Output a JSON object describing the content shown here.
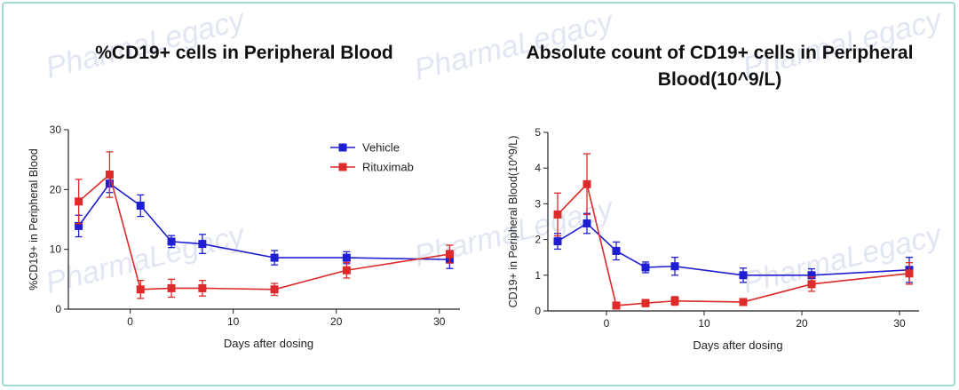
{
  "watermark": "PharmaLegacy",
  "colors": {
    "vehicle": "#1f1fd1",
    "rituximab": "#dd2a2a",
    "axis": "#222222",
    "border": "#9edcd2"
  },
  "chart_data": [
    {
      "type": "line",
      "title": "%CD19+ cells in Peripheral Blood",
      "xlabel": "Days after dosing",
      "ylabel": "%CD19+ in Peripheral Blood",
      "xlim": [
        -6,
        32
      ],
      "ylim": [
        0,
        30
      ],
      "xticks": [
        0,
        10,
        20,
        30
      ],
      "yticks": [
        0,
        10,
        20,
        30
      ],
      "legend": "top-center",
      "series": [
        {
          "name": "Vehicle",
          "color": "#1f1fd1",
          "x": [
            -5,
            -2,
            1,
            4,
            7,
            14,
            21,
            31
          ],
          "y": [
            13.9,
            21.0,
            17.3,
            11.3,
            10.9,
            8.6,
            8.6,
            8.3
          ],
          "err": [
            1.8,
            1.5,
            1.8,
            1.0,
            1.6,
            1.2,
            1.0,
            1.5
          ]
        },
        {
          "name": "Rituximab",
          "color": "#dd2a2a",
          "x": [
            -5,
            -2,
            1,
            4,
            7,
            14,
            21,
            31
          ],
          "y": [
            18.0,
            22.5,
            3.3,
            3.5,
            3.5,
            3.3,
            6.5,
            9.2
          ],
          "err": [
            3.7,
            3.8,
            1.5,
            1.5,
            1.3,
            1.0,
            1.3,
            1.5
          ]
        }
      ]
    },
    {
      "type": "line",
      "title": "Absolute count of CD19+ cells in Peripheral Blood(10^9/L)",
      "xlabel": "Days after dosing",
      "ylabel": "CD19+ in Peripheral Blood(10^9/L)",
      "xlim": [
        -6,
        32
      ],
      "ylim": [
        0,
        5
      ],
      "xticks": [
        0,
        10,
        20,
        30
      ],
      "yticks": [
        0,
        1,
        2,
        3,
        4,
        5
      ],
      "legend": "none",
      "series": [
        {
          "name": "Vehicle",
          "color": "#1f1fd1",
          "x": [
            -5,
            -2,
            1,
            4,
            7,
            14,
            21,
            31
          ],
          "y": [
            1.95,
            2.45,
            1.68,
            1.22,
            1.25,
            1.0,
            1.0,
            1.15
          ],
          "err": [
            0.22,
            0.28,
            0.25,
            0.15,
            0.25,
            0.2,
            0.18,
            0.35
          ]
        },
        {
          "name": "Rituximab",
          "color": "#dd2a2a",
          "x": [
            -5,
            -2,
            1,
            4,
            7,
            14,
            21,
            31
          ],
          "y": [
            2.7,
            3.55,
            0.15,
            0.22,
            0.28,
            0.25,
            0.75,
            1.05
          ],
          "err": [
            0.6,
            0.85,
            0.05,
            0.1,
            0.12,
            0.06,
            0.2,
            0.3
          ]
        }
      ]
    }
  ]
}
